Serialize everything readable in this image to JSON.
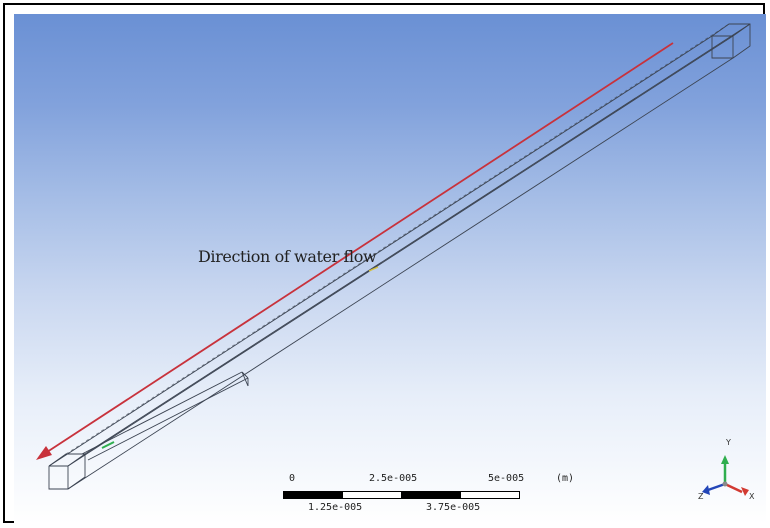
{
  "annotation": {
    "flow_label": "Direction of water flow"
  },
  "scale_bar": {
    "top_labels": [
      "0",
      "2.5e-005",
      "5e-005"
    ],
    "unit": "(m)",
    "bottom_labels": [
      "1.25e-005",
      "3.75e-005"
    ]
  },
  "axis_triad": {
    "y_label": "Y",
    "z_label": "Z",
    "x_label": "X"
  },
  "colors": {
    "background_top": "#6a90d4",
    "background_bottom": "#ffffff",
    "flow_arrow": "#c8323c",
    "wireframe": "#3c4452",
    "y_axis": "#2fae4e",
    "x_axis": "#d23a32",
    "z_axis": "#2346b8"
  }
}
